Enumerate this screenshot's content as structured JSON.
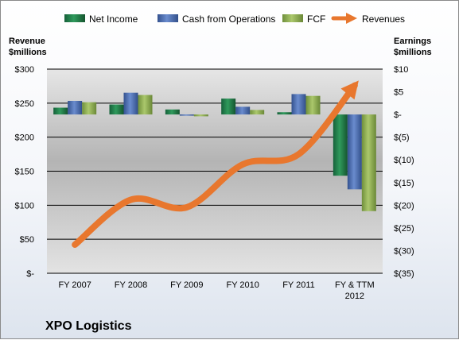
{
  "company_name": "XPO Logistics",
  "legend": [
    "Net Income",
    "Cash from Operations",
    "FCF",
    "Revenues"
  ],
  "colors": {
    "net_income": "#217a48",
    "cash_from_operations": "#4b6cb3",
    "fcf": "#8cae4e",
    "revenues": "#e8772e"
  },
  "chart_data": {
    "type": "bar",
    "categories": [
      "FY 2007",
      "FY 2008",
      "FY 2009",
      "FY 2010",
      "FY 2011",
      "FY & TTM 2012"
    ],
    "category_lines": [
      [
        "FY 2007"
      ],
      [
        "FY 2008"
      ],
      [
        "FY 2009"
      ],
      [
        "FY 2010"
      ],
      [
        "FY 2011"
      ],
      [
        "FY & TTM",
        "2012"
      ]
    ],
    "series": [
      {
        "name": "Net Income",
        "axis": "right",
        "values": [
          1.5,
          2.2,
          1.1,
          3.5,
          0.5,
          -13.5
        ]
      },
      {
        "name": "Cash from Operations",
        "axis": "right",
        "values": [
          3.0,
          4.8,
          -0.1,
          1.7,
          4.5,
          -16.5
        ]
      },
      {
        "name": "FCF",
        "axis": "right",
        "values": [
          2.7,
          4.3,
          -0.4,
          1.0,
          4.1,
          -21.3
        ]
      },
      {
        "name": "Revenues",
        "type": "line",
        "axis": "left",
        "values": [
          42,
          108,
          97,
          160,
          175,
          276
        ]
      }
    ],
    "left_axis": {
      "title_lines": [
        "Revenue",
        "$millions"
      ],
      "ylim": [
        0,
        300
      ],
      "ticks": [
        0,
        50,
        100,
        150,
        200,
        250,
        300
      ],
      "tick_labels": [
        "$-",
        "$50",
        "$100",
        "$150",
        "$200",
        "$250",
        "$300"
      ]
    },
    "right_axis": {
      "title_lines": [
        "Earnings",
        "$millions"
      ],
      "ylim": [
        -35,
        10
      ],
      "ticks": [
        -35,
        -30,
        -25,
        -20,
        -15,
        -10,
        -5,
        0,
        5,
        10
      ],
      "tick_labels": [
        "$(35)",
        "$(30)",
        "$(25)",
        "$(20)",
        "$(15)",
        "$(10)",
        "$(5)",
        "$-",
        "$5",
        "$10"
      ]
    },
    "grid": true,
    "legend_position": "top"
  }
}
